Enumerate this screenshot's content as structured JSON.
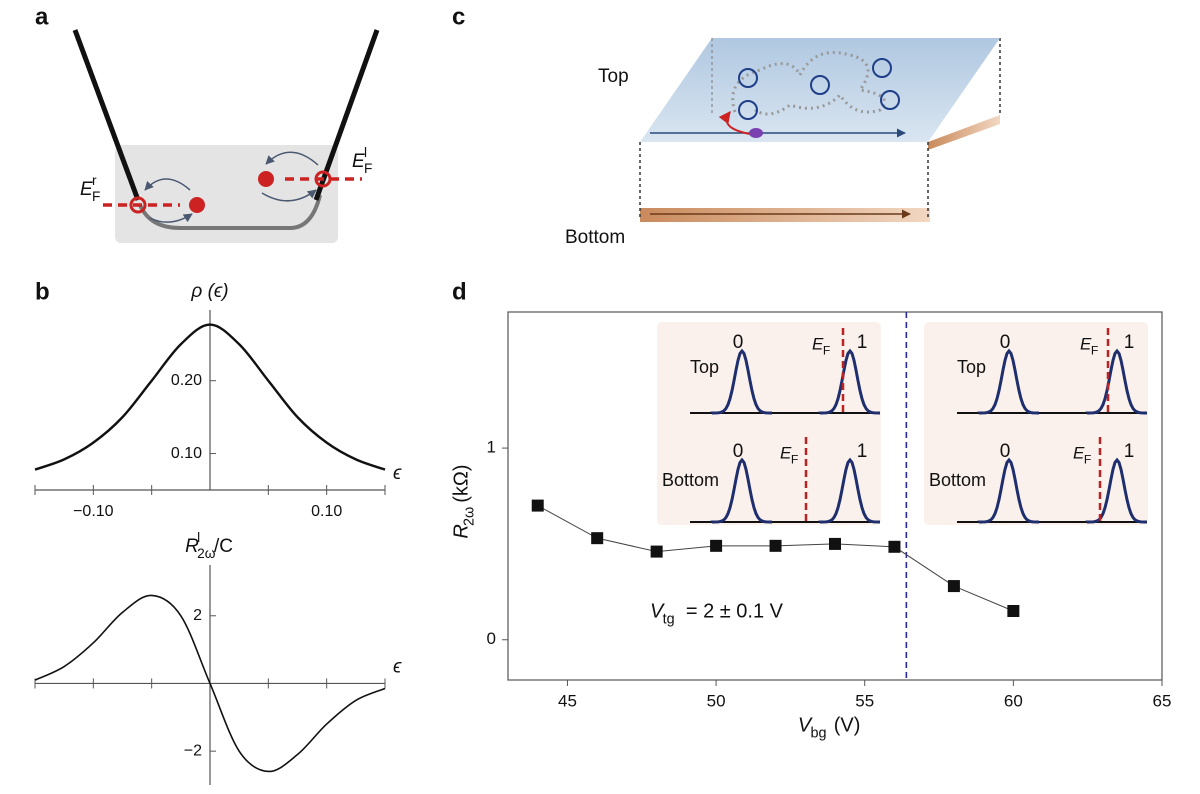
{
  "panel_labels": [
    "a",
    "b",
    "c",
    "d"
  ],
  "diagram_a": {
    "labels": [
      {
        "main": "E",
        "sub": "F",
        "sup": "r"
      },
      {
        "main": "E",
        "sub": "F",
        "sup": "l"
      }
    ]
  },
  "diagram_c": {
    "labels": [
      "Top",
      "Bottom"
    ]
  },
  "chart_data": [
    {
      "type": "line",
      "ylabel": "ρ (ϵ)",
      "xlabel": "ϵ",
      "x": [
        -0.15,
        -0.125,
        -0.1,
        -0.075,
        -0.05,
        -0.025,
        0,
        0.025,
        0.05,
        0.075,
        0.1,
        0.125,
        0.15
      ],
      "series": [
        {
          "color": "#111111",
          "values": [
            0.078,
            0.092,
            0.115,
            0.15,
            0.2,
            0.25,
            0.277,
            0.25,
            0.2,
            0.15,
            0.115,
            0.092,
            0.078
          ]
        }
      ],
      "xlim": [
        -0.15,
        0.15
      ],
      "ylim": [
        0.05,
        0.297
      ],
      "xticks": [
        {
          "value": -0.1,
          "label": "−0.10"
        },
        {
          "value": 0.1,
          "label": "0.10"
        }
      ],
      "xminorticks": [
        -0.15,
        -0.05,
        0.05,
        0.15
      ],
      "yticks": [
        {
          "value": 0.1,
          "label": "0.10"
        },
        {
          "value": 0.2,
          "label": "0.20"
        }
      ]
    },
    {
      "type": "line",
      "ylabel": {
        "main": "R",
        "sub": "2ω",
        "sup": "l",
        "rest": "/C"
      },
      "xlabel": "ϵ",
      "x": [
        -0.15,
        -0.125,
        -0.1,
        -0.075,
        -0.05,
        -0.025,
        0,
        0.025,
        0.05,
        0.075,
        0.1,
        0.125,
        0.15
      ],
      "series": [
        {
          "color": "#111111",
          "values": [
            0.1,
            0.5,
            1.2,
            2.1,
            2.6,
            2.0,
            0,
            -2.0,
            -2.6,
            -2.1,
            -1.2,
            -0.5,
            -0.15
          ]
        }
      ],
      "xlim": [
        -0.15,
        0.15
      ],
      "ylim": [
        -3.0,
        3.5
      ],
      "xminorticks": [
        -0.15,
        -0.1,
        -0.05,
        0.05,
        0.1,
        0.15
      ],
      "yticks": [
        {
          "value": -2,
          "label": "−2"
        },
        2
      ]
    },
    {
      "type": "scatter",
      "xlabel": {
        "main": "V",
        "sub": "bg",
        "rest": " (V)"
      },
      "ylabel": {
        "main": "R",
        "sub": "2ω",
        "rest": " (kΩ)"
      },
      "annotation": {
        "main": "V",
        "sub": "tg",
        "rest": " = 2 ± 0.1 V"
      },
      "x": [
        44,
        46,
        48,
        50,
        52,
        54,
        56,
        58,
        60
      ],
      "series": [
        {
          "color": "#111111",
          "values": [
            0.7,
            0.53,
            0.46,
            0.49,
            0.49,
            0.5,
            0.485,
            0.28,
            0.15
          ]
        }
      ],
      "vline": 56.4,
      "vline_color": "#2a2aa0",
      "xlim": [
        43,
        65
      ],
      "ylim": [
        -0.21,
        1.71
      ],
      "xticks": [
        45,
        50,
        55,
        60,
        65
      ],
      "yticks": [
        0,
        1
      ],
      "insets": [
        {
          "layers": [
            "Top",
            "Bottom"
          ],
          "levels": [
            "0",
            "1"
          ],
          "fermi": {
            "main": "E",
            "sub": "F"
          }
        },
        {
          "layers": [
            "Top",
            "Bottom"
          ],
          "levels": [
            "0",
            "1"
          ],
          "fermi": {
            "main": "E",
            "sub": "F"
          }
        }
      ]
    }
  ]
}
